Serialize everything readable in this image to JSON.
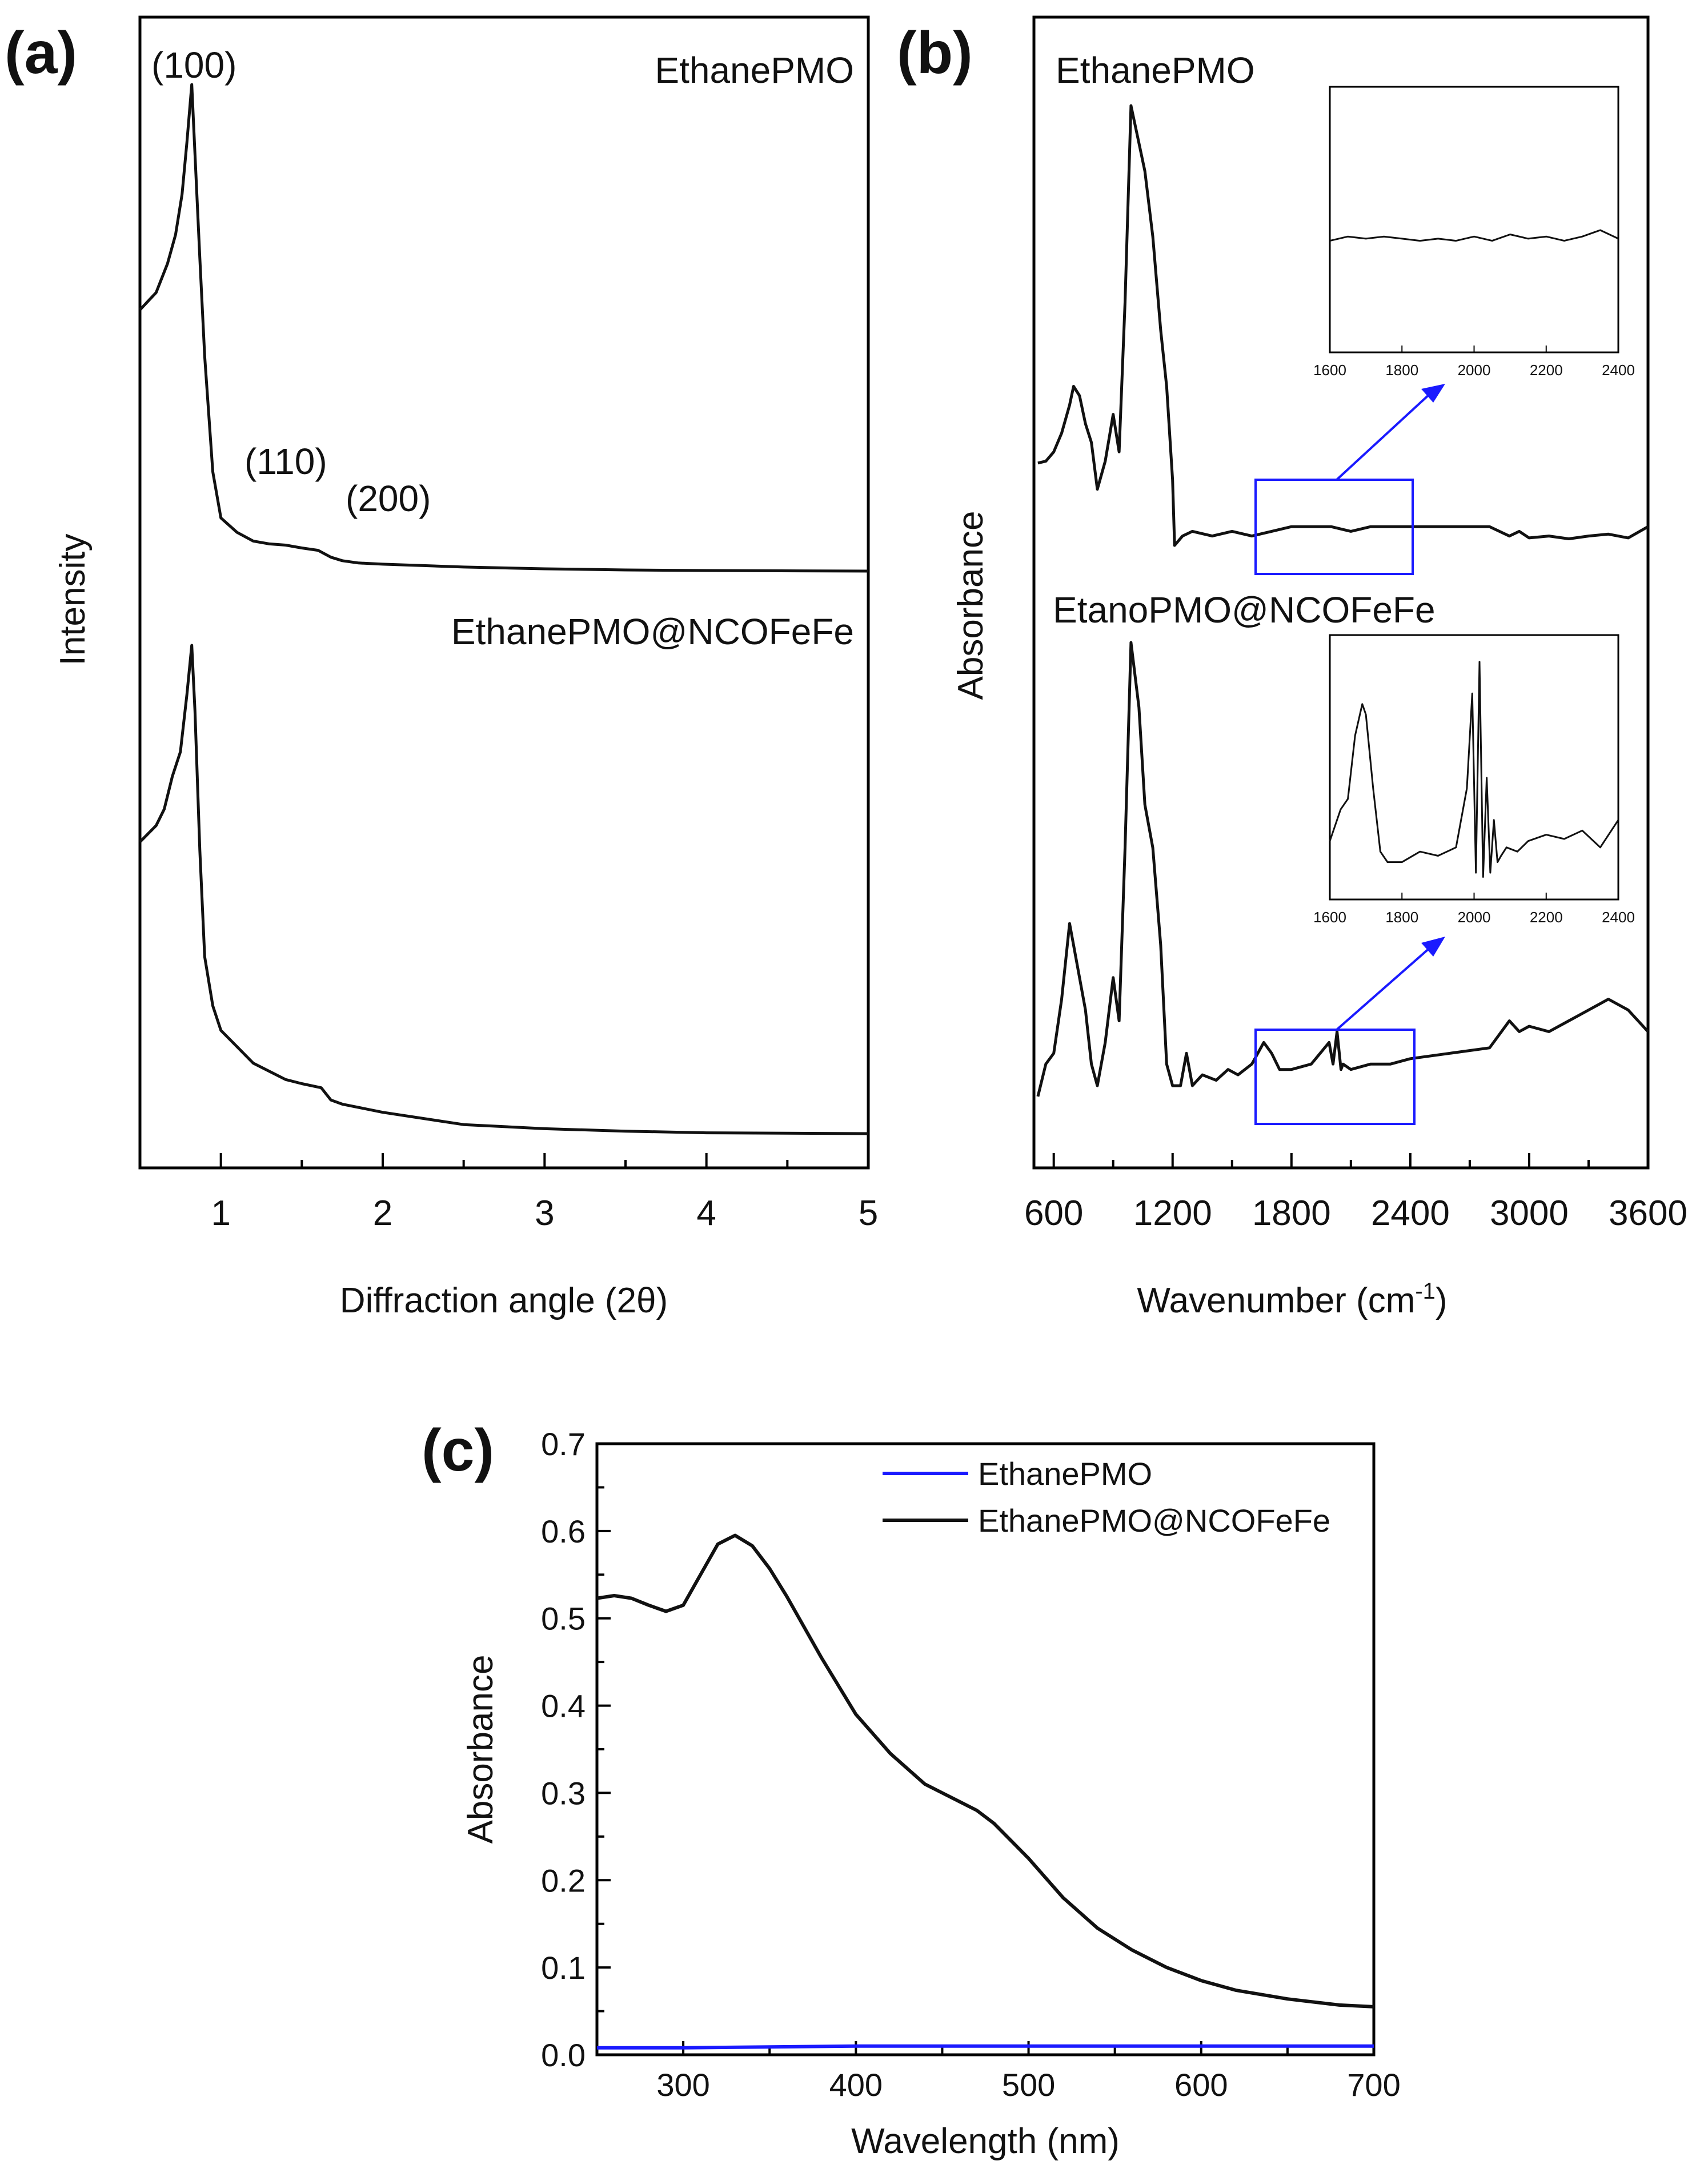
{
  "colors": {
    "black": "#111111",
    "blue": "#1a1aff",
    "frame": "#000000"
  },
  "chart_data": [
    {
      "id": "a",
      "panel_label": "(a)",
      "type": "line",
      "title": "",
      "xlabel": "Diffraction angle (2θ)",
      "ylabel": "Intensity",
      "xlim": [
        0.5,
        5
      ],
      "ylim": [
        0,
        1
      ],
      "x_ticks": [
        1,
        2,
        3,
        4,
        5
      ],
      "x_tick_labels": [
        "1",
        "2",
        "3",
        "4",
        "5"
      ],
      "annotations": [
        "(100)",
        "(110)",
        "(200)"
      ],
      "series": [
        {
          "name": "EthanePMO",
          "x": [
            0.5,
            0.6,
            0.67,
            0.72,
            0.76,
            0.79,
            0.82,
            0.84,
            0.87,
            0.9,
            0.95,
            1.0,
            1.1,
            1.2,
            1.3,
            1.4,
            1.5,
            1.6,
            1.68,
            1.75,
            1.85,
            2.0,
            2.5,
            3.0,
            3.5,
            4.0,
            5.0
          ],
          "y": [
            0.73,
            0.76,
            0.81,
            0.86,
            0.93,
            1.02,
            1.12,
            1.0,
            0.82,
            0.65,
            0.45,
            0.37,
            0.345,
            0.33,
            0.325,
            0.323,
            0.318,
            0.314,
            0.302,
            0.296,
            0.292,
            0.29,
            0.285,
            0.282,
            0.28,
            0.279,
            0.278
          ]
        },
        {
          "name": "EthanePMO@NCOFeFe",
          "x": [
            0.5,
            0.55,
            0.6,
            0.65,
            0.7,
            0.75,
            0.79,
            0.82,
            0.84,
            0.87,
            0.9,
            0.95,
            1.0,
            1.1,
            1.2,
            1.3,
            1.4,
            1.5,
            1.62,
            1.68,
            1.75,
            2.0,
            2.5,
            3.0,
            3.5,
            4.0,
            5.0
          ],
          "y": [
            0.44,
            0.45,
            0.46,
            0.48,
            0.52,
            0.55,
            0.62,
            0.68,
            0.6,
            0.43,
            0.3,
            0.24,
            0.21,
            0.19,
            0.17,
            0.16,
            0.15,
            0.145,
            0.14,
            0.125,
            0.12,
            0.11,
            0.095,
            0.09,
            0.087,
            0.085,
            0.084
          ]
        }
      ]
    },
    {
      "id": "b",
      "panel_label": "(b)",
      "type": "line",
      "title": "",
      "xlabel": "Wavenumber (cm",
      "xlabel_sup": "-1",
      "xlabel_end": ")",
      "ylabel": "Absorbance",
      "xlim": [
        500,
        3600
      ],
      "ylim": [
        0,
        1
      ],
      "x_ticks": [
        600,
        1200,
        1800,
        2400,
        3000,
        3600
      ],
      "x_tick_labels": [
        "600",
        "1200",
        "1800",
        "2400",
        "3000",
        "3600"
      ],
      "series": [
        {
          "name": "EthanePMO",
          "x": [
            520,
            560,
            600,
            640,
            680,
            700,
            730,
            760,
            790,
            820,
            860,
            900,
            930,
            960,
            990,
            1030,
            1060,
            1100,
            1140,
            1170,
            1200,
            1210,
            1250,
            1300,
            1400,
            1500,
            1600,
            1700,
            1800,
            1900,
            2000,
            2100,
            2200,
            2300,
            2400,
            2600,
            2800,
            2900,
            2950,
            3000,
            3100,
            3200,
            3300,
            3400,
            3500,
            3600
          ],
          "y": [
            0.618,
            0.62,
            0.63,
            0.65,
            0.68,
            0.7,
            0.69,
            0.66,
            0.64,
            0.59,
            0.62,
            0.67,
            0.63,
            0.79,
            1.0,
            0.96,
            0.93,
            0.86,
            0.76,
            0.7,
            0.6,
            0.53,
            0.54,
            0.545,
            0.54,
            0.545,
            0.54,
            0.545,
            0.55,
            0.55,
            0.55,
            0.545,
            0.55,
            0.55,
            0.55,
            0.55,
            0.55,
            0.54,
            0.545,
            0.538,
            0.54,
            0.537,
            0.54,
            0.542,
            0.538,
            0.55
          ]
        },
        {
          "name": "EtanoPMO@NCOFeFe",
          "x": [
            520,
            560,
            600,
            640,
            680,
            700,
            730,
            760,
            790,
            820,
            860,
            900,
            930,
            960,
            990,
            1030,
            1060,
            1100,
            1140,
            1170,
            1200,
            1240,
            1270,
            1300,
            1350,
            1420,
            1480,
            1530,
            1600,
            1660,
            1700,
            1740,
            1800,
            1900,
            1990,
            2010,
            2030,
            2050,
            2060,
            2100,
            2200,
            2300,
            2400,
            2600,
            2800,
            2900,
            2950,
            3000,
            3100,
            3200,
            3300,
            3400,
            3500,
            3600
          ],
          "y": [
            0.06,
            0.09,
            0.1,
            0.15,
            0.22,
            0.2,
            0.17,
            0.14,
            0.09,
            0.07,
            0.11,
            0.17,
            0.13,
            0.29,
            0.48,
            0.42,
            0.33,
            0.29,
            0.2,
            0.09,
            0.07,
            0.07,
            0.1,
            0.07,
            0.08,
            0.075,
            0.085,
            0.08,
            0.09,
            0.11,
            0.1,
            0.085,
            0.085,
            0.09,
            0.11,
            0.09,
            0.12,
            0.085,
            0.09,
            0.085,
            0.09,
            0.09,
            0.095,
            0.1,
            0.105,
            0.13,
            0.12,
            0.125,
            0.12,
            0.13,
            0.14,
            0.15,
            0.14,
            0.12
          ]
        }
      ],
      "insets": [
        {
          "xlim": [
            1600,
            2400
          ],
          "x_ticks": [
            1600,
            1800,
            2000,
            2200,
            2400
          ],
          "x_tick_labels": [
            "1600",
            "1800",
            "2000",
            "2200",
            "2400"
          ],
          "x": [
            1600,
            1650,
            1700,
            1750,
            1800,
            1850,
            1900,
            1950,
            2000,
            2050,
            2100,
            2150,
            2200,
            2250,
            2300,
            2350,
            2400
          ],
          "y": [
            0.5,
            0.52,
            0.51,
            0.52,
            0.51,
            0.5,
            0.51,
            0.5,
            0.52,
            0.5,
            0.53,
            0.51,
            0.52,
            0.5,
            0.52,
            0.55,
            0.51
          ]
        },
        {
          "xlim": [
            1600,
            2400
          ],
          "x_ticks": [
            1600,
            1800,
            2000,
            2200,
            2400
          ],
          "x_tick_labels": [
            "1600",
            "1800",
            "2000",
            "2200",
            "2400"
          ],
          "x": [
            1600,
            1630,
            1650,
            1670,
            1690,
            1700,
            1720,
            1740,
            1760,
            1800,
            1850,
            1900,
            1950,
            1980,
            1995,
            2005,
            2015,
            2025,
            2035,
            2045,
            2055,
            2065,
            2075,
            2090,
            2120,
            2150,
            2200,
            2250,
            2300,
            2350,
            2400
          ],
          "y": [
            0.25,
            0.4,
            0.45,
            0.75,
            0.9,
            0.85,
            0.5,
            0.2,
            0.15,
            0.15,
            0.2,
            0.18,
            0.22,
            0.5,
            0.95,
            0.1,
            1.1,
            0.08,
            0.55,
            0.1,
            0.35,
            0.15,
            0.18,
            0.22,
            0.2,
            0.25,
            0.28,
            0.26,
            0.3,
            0.22,
            0.35
          ]
        }
      ]
    },
    {
      "id": "c",
      "panel_label": "(c)",
      "type": "line",
      "title": "",
      "xlabel": "Wavelength (nm)",
      "ylabel": "Absorbance",
      "xlim": [
        250,
        700
      ],
      "ylim": [
        0,
        0.7
      ],
      "x_ticks": [
        300,
        400,
        500,
        600,
        700
      ],
      "x_tick_labels": [
        "300",
        "400",
        "500",
        "600",
        "700"
      ],
      "y_ticks": [
        0,
        0.1,
        0.2,
        0.3,
        0.4,
        0.5,
        0.6,
        0.7
      ],
      "y_tick_labels": [
        "0.0",
        "0.1",
        "0.2",
        "0.3",
        "0.4",
        "0.5",
        "0.6",
        "0.7"
      ],
      "legend_position": "top-right",
      "series": [
        {
          "name": "EthanePMO",
          "color": "#1a1aff",
          "x": [
            250,
            300,
            350,
            400,
            450,
            500,
            550,
            600,
            650,
            700
          ],
          "y": [
            0.008,
            0.008,
            0.009,
            0.01,
            0.01,
            0.01,
            0.01,
            0.01,
            0.01,
            0.01
          ]
        },
        {
          "name": "EthanePMO@NCOFeFe",
          "color": "#111111",
          "x": [
            250,
            260,
            270,
            280,
            290,
            300,
            310,
            320,
            330,
            340,
            350,
            360,
            380,
            400,
            420,
            440,
            460,
            470,
            480,
            500,
            520,
            540,
            560,
            580,
            600,
            620,
            650,
            680,
            700
          ],
          "y": [
            0.523,
            0.526,
            0.523,
            0.515,
            0.508,
            0.515,
            0.55,
            0.585,
            0.595,
            0.583,
            0.557,
            0.525,
            0.455,
            0.39,
            0.345,
            0.31,
            0.29,
            0.28,
            0.265,
            0.225,
            0.18,
            0.145,
            0.12,
            0.1,
            0.085,
            0.074,
            0.064,
            0.057,
            0.055
          ]
        }
      ]
    }
  ]
}
